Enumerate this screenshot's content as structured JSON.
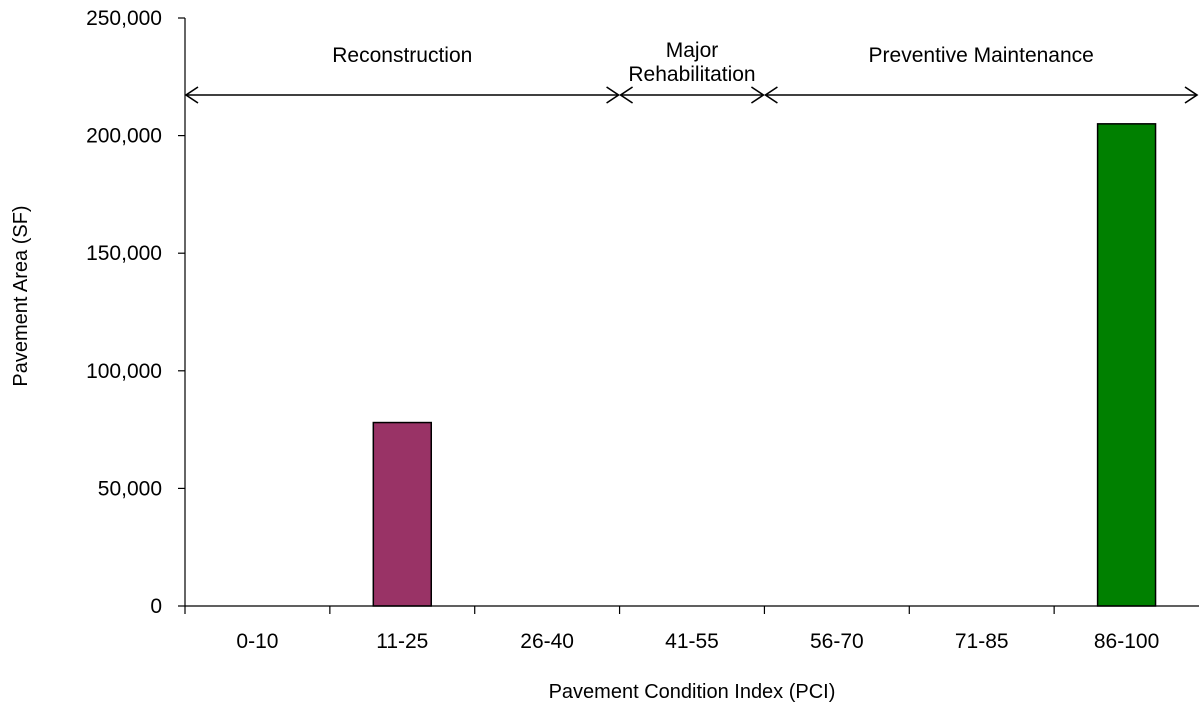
{
  "chart_data": {
    "type": "bar",
    "xlabel": "Pavement Condition Index (PCI)",
    "ylabel": "Pavement Area (SF)",
    "categories": [
      "0-10",
      "11-25",
      "26-40",
      "41-55",
      "56-70",
      "71-85",
      "86-100"
    ],
    "values": [
      0,
      78000,
      0,
      0,
      0,
      0,
      205000
    ],
    "bar_colors": [
      "#993366",
      "#993366",
      "#993366",
      "#993366",
      "#008000",
      "#008000",
      "#008000"
    ],
    "ylim": [
      0,
      250000
    ],
    "yticks": [
      {
        "value": 0,
        "label": "0"
      },
      {
        "value": 50000,
        "label": "50,000"
      },
      {
        "value": 100000,
        "label": "100,000"
      },
      {
        "value": 150000,
        "label": "150,000"
      },
      {
        "value": 200000,
        "label": "200,000"
      },
      {
        "value": 250000,
        "label": "250,000"
      }
    ],
    "grid": false,
    "legend": "none",
    "annotations": [
      {
        "lines": [
          "Reconstruction"
        ],
        "from_category": 0,
        "to_category": 2
      },
      {
        "lines": [
          "Major",
          "Rehabilitation"
        ],
        "from_category": 3,
        "to_category": 3
      },
      {
        "lines": [
          "Preventive Maintenance"
        ],
        "from_category": 4,
        "to_category": 6
      }
    ]
  }
}
